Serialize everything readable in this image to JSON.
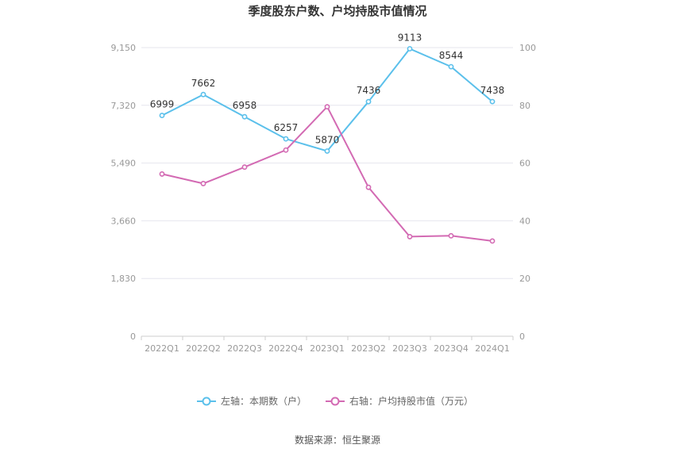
{
  "chart_data": {
    "type": "line",
    "title": "季度股东户数、户均持股市值情况",
    "categories": [
      "2022Q1",
      "2022Q2",
      "2022Q3",
      "2022Q4",
      "2023Q1",
      "2023Q2",
      "2023Q3",
      "2023Q4",
      "2024Q1"
    ],
    "series": [
      {
        "name": "左轴：本期数（户）",
        "axis": "left",
        "color": "#5bc0eb",
        "values": [
          6999,
          7662,
          6958,
          6257,
          5870,
          7436,
          9113,
          8544,
          7438
        ],
        "labels": [
          "6999",
          "7662",
          "6958",
          "6257",
          "5870",
          "7436",
          "9113",
          "8544",
          "7438"
        ]
      },
      {
        "name": "右轴：户均持股市值（万元）",
        "axis": "right",
        "color": "#d36ab3",
        "values": [
          56.2,
          52.9,
          58.6,
          64.5,
          79.5,
          51.6,
          34.5,
          34.8,
          33.0
        ]
      }
    ],
    "y_left": {
      "ylim": [
        0,
        9150
      ],
      "ticks": [
        "0",
        "1,830",
        "3,660",
        "5,490",
        "7,320",
        "9,150"
      ]
    },
    "y_right": {
      "ylim": [
        0,
        100
      ],
      "ticks": [
        "0",
        "20",
        "40",
        "60",
        "80",
        "100"
      ]
    },
    "grid": true,
    "legend": "bottom-center"
  },
  "source": "数据来源：恒生聚源"
}
